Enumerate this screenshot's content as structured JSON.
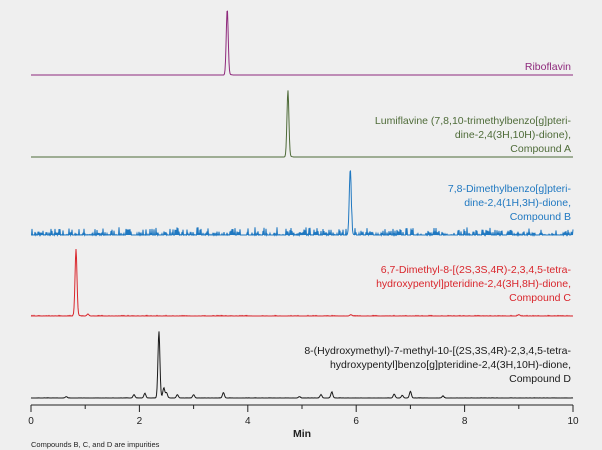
{
  "chart_data": {
    "type": "line",
    "xlabel": "Min",
    "xlim": [
      0,
      10
    ],
    "x_ticks": [
      "0",
      "2",
      "4",
      "6",
      "8",
      "10"
    ],
    "grid": false,
    "legend": "inline labels right of each trace",
    "footnote": "Compounds B, C, and D are impurities",
    "series": [
      {
        "name": "Riboflavin",
        "label_lines": [
          "Riboflavin"
        ],
        "color": "#8e2a7c",
        "main_peak": {
          "x": 3.62,
          "rel_height": 1.0
        },
        "minor_peaks": [],
        "noise": 0.0
      },
      {
        "name": "Lumiflavine (7,8,10-trimethylbenzo[g]pteridine-2,4(3H,10H)-dione), Compound A",
        "label_lines": [
          "Lumiflavine (7,8,10-trimethylbenzo[g]pteri-",
          "dine-2,4(3H,10H)-dione),",
          "Compound A"
        ],
        "color": "#4e6b38",
        "main_peak": {
          "x": 4.74,
          "rel_height": 1.0
        },
        "minor_peaks": [],
        "noise": 0.0
      },
      {
        "name": "7,8-Dimethylbenzo[g]pteridine-2,4(1H,3H)-dione, Compound B",
        "label_lines": [
          "7,8-Dimethylbenzo[g]pteri-",
          "dine-2,4(1H,3H)-dione,",
          "Compound B"
        ],
        "color": "#1f78c1",
        "main_peak": {
          "x": 5.89,
          "rel_height": 1.0
        },
        "minor_peaks": [],
        "noise": 0.12
      },
      {
        "name": "6,7-Dimethyl-8-[(2S,3S,4R)-2,3,4,5-tetrahydroxypentyl]pteridine-2,4(3H,8H)-dione, Compound C",
        "label_lines": [
          "6,7-Dimethyl-8-[(2S,3S,4R)-2,3,4,5-tetra-",
          "hydroxypentyl]pteridine-2,4(3H,8H)-dione,",
          "Compound C"
        ],
        "color": "#d9262c",
        "main_peak": {
          "x": 0.83,
          "rel_height": 1.0
        },
        "minor_peaks": [
          {
            "x": 1.05,
            "rel_height": 0.03
          },
          {
            "x": 5.9,
            "rel_height": 0.02
          },
          {
            "x": 9.0,
            "rel_height": 0.02
          }
        ],
        "noise": 0.01
      },
      {
        "name": "8-(Hydroxymethyl)-7-methyl-10-[(2S,3S,4R)-2,3,4,5-tetrahydroxypentyl]benzo[g]pteridine-2,4(3H,10H)-dione, Compound D",
        "label_lines": [
          "8-(Hydroxymethyl)-7-methyl-10-[(2S,3S,4R)-2,3,4,5-tetra-",
          "hydroxypentyl]benzo[g]pteridine-2,4(3H,10H)-dione,",
          "Compound D"
        ],
        "color": "#1a1a1a",
        "main_peak": {
          "x": 2.36,
          "rel_height": 1.0
        },
        "minor_peaks": [
          {
            "x": 0.65,
            "rel_height": 0.02
          },
          {
            "x": 1.9,
            "rel_height": 0.05
          },
          {
            "x": 2.1,
            "rel_height": 0.07
          },
          {
            "x": 2.45,
            "rel_height": 0.15
          },
          {
            "x": 2.5,
            "rel_height": 0.08
          },
          {
            "x": 2.7,
            "rel_height": 0.05
          },
          {
            "x": 3.0,
            "rel_height": 0.05
          },
          {
            "x": 3.55,
            "rel_height": 0.08
          },
          {
            "x": 4.95,
            "rel_height": 0.02
          },
          {
            "x": 5.35,
            "rel_height": 0.05
          },
          {
            "x": 5.55,
            "rel_height": 0.09
          },
          {
            "x": 6.7,
            "rel_height": 0.06
          },
          {
            "x": 6.85,
            "rel_height": 0.04
          },
          {
            "x": 7.0,
            "rel_height": 0.1
          },
          {
            "x": 7.6,
            "rel_height": 0.03
          }
        ],
        "noise": 0.005
      }
    ]
  }
}
